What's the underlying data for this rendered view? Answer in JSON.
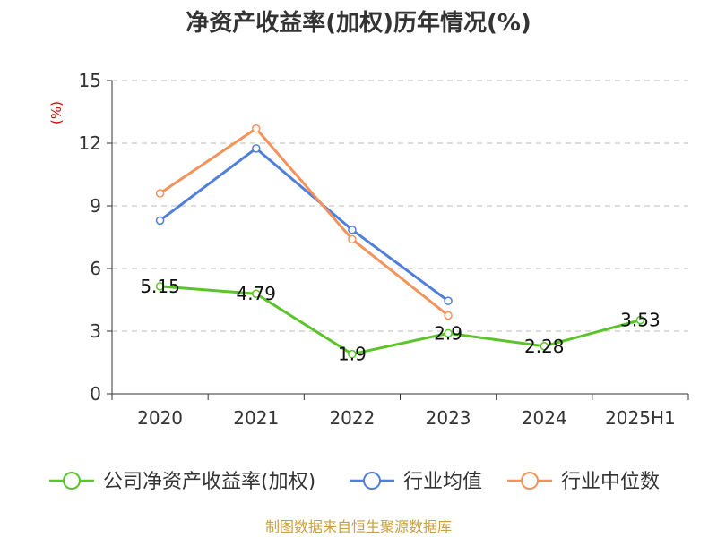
{
  "chart_data": {
    "type": "line",
    "title": "净资产收益率(加权)历年情况(%)",
    "ylabel": "(%)",
    "categories": [
      "2020",
      "2021",
      "2022",
      "2023",
      "2024",
      "2025H1"
    ],
    "yticks": [
      "0",
      "3",
      "6",
      "9",
      "12",
      "15"
    ],
    "ylim": [
      0,
      15
    ],
    "grid": true,
    "legend_position": "bottom",
    "series": [
      {
        "name": "公司净资产收益率(加权)",
        "color": "#5bc42a",
        "values": [
          5.15,
          4.79,
          1.9,
          2.9,
          2.28,
          3.53
        ],
        "labels": [
          "5.15",
          "4.79",
          "1.9",
          "2.9",
          "2.28",
          "3.53"
        ]
      },
      {
        "name": "行业均值",
        "color": "#4f7fd9",
        "values": [
          8.3,
          11.75,
          7.85,
          4.45,
          null,
          null
        ]
      },
      {
        "name": "行业中位数",
        "color": "#f4925c",
        "values": [
          9.6,
          12.7,
          7.4,
          3.75,
          null,
          null
        ]
      }
    ]
  },
  "source": "制图数据来自恒生聚源数据库"
}
